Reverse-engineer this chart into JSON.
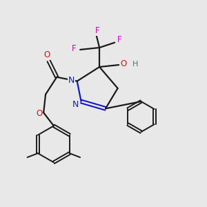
{
  "bg_color": "#e8e8e8",
  "bond_color": "#1a1a1a",
  "N_color": "#1515cc",
  "O_color": "#cc1515",
  "F_color": "#cc00bb",
  "H_color": "#3a8080",
  "figsize": [
    3.0,
    3.0
  ],
  "dpi": 100,
  "xlim": [
    0,
    10
  ],
  "ylim": [
    0,
    10
  ]
}
